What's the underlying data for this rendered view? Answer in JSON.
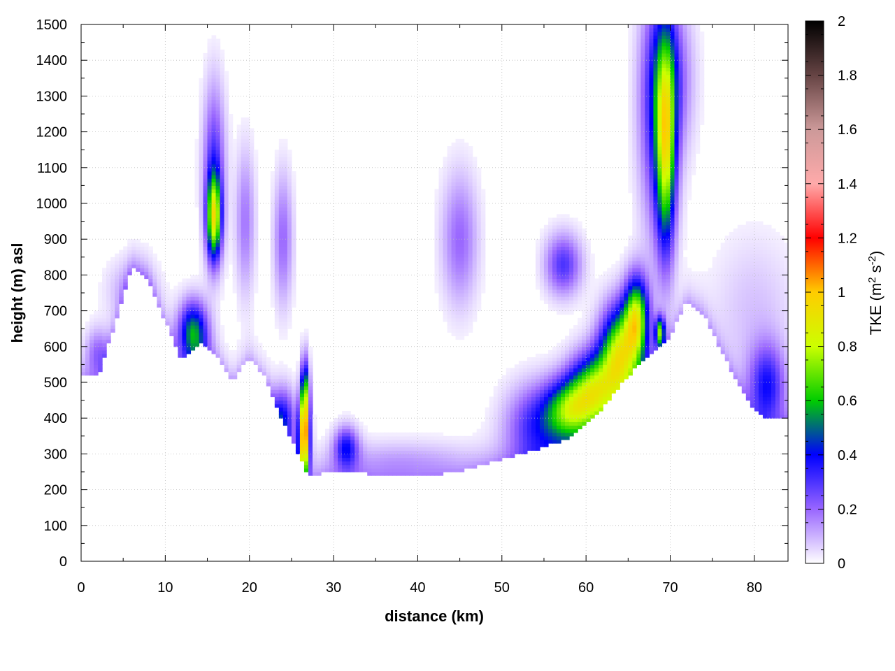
{
  "chart_data": {
    "type": "heatmap",
    "title": "",
    "xlabel": "distance (km)",
    "ylabel": "height (m) asl",
    "xlim": [
      0,
      84
    ],
    "ylim": [
      0,
      1500
    ],
    "x_ticks": [
      0,
      10,
      20,
      30,
      40,
      50,
      60,
      70,
      80
    ],
    "y_ticks": [
      0,
      100,
      200,
      300,
      400,
      500,
      600,
      700,
      800,
      900,
      1000,
      1100,
      1200,
      1300,
      1400,
      1500
    ],
    "grid": true,
    "colorbar": {
      "label_main": "TKE (m",
      "label_sup1": "2",
      "label_mid": " s",
      "label_sup2": "-2",
      "label_end": ")",
      "range": [
        0,
        2
      ],
      "ticks": [
        0,
        0.2,
        0.4,
        0.6,
        0.8,
        1,
        1.2,
        1.4,
        1.6,
        1.8,
        2
      ],
      "colorstops": [
        [
          0.0,
          "#ffffff"
        ],
        [
          0.2,
          "#9966ff"
        ],
        [
          0.4,
          "#0000ff"
        ],
        [
          0.6,
          "#00cc00"
        ],
        [
          0.8,
          "#ccff00"
        ],
        [
          1.0,
          "#ffcc00"
        ],
        [
          1.2,
          "#ff0000"
        ],
        [
          1.4,
          "#ffaaaa"
        ],
        [
          1.6,
          "#cc9999"
        ],
        [
          1.8,
          "#664444"
        ],
        [
          2.0,
          "#000000"
        ]
      ]
    },
    "terrain": [
      [
        0,
        520
      ],
      [
        2,
        515
      ],
      [
        4,
        660
      ],
      [
        6,
        820
      ],
      [
        8,
        790
      ],
      [
        10,
        670
      ],
      [
        12,
        560
      ],
      [
        14,
        610
      ],
      [
        16,
        580
      ],
      [
        18,
        505
      ],
      [
        20,
        570
      ],
      [
        22,
        510
      ],
      [
        24,
        390
      ],
      [
        26,
        290
      ],
      [
        27,
        235
      ],
      [
        29,
        250
      ],
      [
        32,
        255
      ],
      [
        35,
        240
      ],
      [
        40,
        238
      ],
      [
        45,
        250
      ],
      [
        50,
        285
      ],
      [
        55,
        320
      ],
      [
        58,
        345
      ],
      [
        60,
        380
      ],
      [
        62,
        430
      ],
      [
        64,
        490
      ],
      [
        66,
        545
      ],
      [
        68,
        585
      ],
      [
        70,
        630
      ],
      [
        72,
        730
      ],
      [
        74,
        690
      ],
      [
        76,
        590
      ],
      [
        78,
        500
      ],
      [
        80,
        420
      ],
      [
        82,
        395
      ],
      [
        84,
        405
      ]
    ],
    "tke_features": [
      {
        "x": 15.8,
        "z": 960,
        "sx": 0.6,
        "sz": 80,
        "peak": 0.75
      },
      {
        "x": 15.8,
        "z": 1100,
        "sx": 0.9,
        "sz": 160,
        "peak": 0.3
      },
      {
        "x": 13.3,
        "z": 640,
        "sx": 1.2,
        "sz": 60,
        "peak": 0.55
      },
      {
        "x": 2.0,
        "z": 580,
        "sx": 1.0,
        "sz": 50,
        "peak": 0.2
      },
      {
        "x": 19.5,
        "z": 950,
        "sx": 0.8,
        "sz": 140,
        "peak": 0.18
      },
      {
        "x": 24.0,
        "z": 900,
        "sx": 0.8,
        "sz": 130,
        "peak": 0.2
      },
      {
        "x": 24.0,
        "z": 400,
        "sx": 1.0,
        "sz": 60,
        "peak": 0.35
      },
      {
        "x": 26.5,
        "z": 340,
        "sx": 0.45,
        "sz": 80,
        "peak": 1.05
      },
      {
        "x": 26.6,
        "z": 470,
        "sx": 0.35,
        "sz": 70,
        "peak": 0.55
      },
      {
        "x": 31.5,
        "z": 320,
        "sx": 1.0,
        "sz": 40,
        "peak": 0.35
      },
      {
        "x": 45.0,
        "z": 900,
        "sx": 1.5,
        "sz": 130,
        "peak": 0.2
      },
      {
        "x": 57.3,
        "z": 830,
        "sx": 1.5,
        "sz": 60,
        "peak": 0.3
      },
      {
        "x": 58.0,
        "z": 420,
        "sx": 2.0,
        "sz": 60,
        "peak": 0.6
      },
      {
        "x": 61.0,
        "z": 480,
        "sx": 2.0,
        "sz": 70,
        "peak": 0.7
      },
      {
        "x": 64.0,
        "z": 580,
        "sx": 1.6,
        "sz": 90,
        "peak": 0.8
      },
      {
        "x": 66.0,
        "z": 680,
        "sx": 1.0,
        "sz": 80,
        "peak": 0.75
      },
      {
        "x": 54.0,
        "z": 380,
        "sx": 2.5,
        "sz": 80,
        "peak": 0.3
      },
      {
        "x": 69.5,
        "z": 1150,
        "sx": 0.8,
        "sz": 200,
        "peak": 0.65
      },
      {
        "x": 68.5,
        "z": 1250,
        "sx": 1.5,
        "sz": 250,
        "peak": 0.3
      },
      {
        "x": 70.0,
        "z": 1350,
        "sx": 1.8,
        "sz": 150,
        "peak": 0.25
      },
      {
        "x": 68.8,
        "z": 640,
        "sx": 0.4,
        "sz": 30,
        "peak": 0.65
      },
      {
        "x": 81.5,
        "z": 490,
        "sx": 1.5,
        "sz": 80,
        "peak": 0.35
      },
      {
        "x": 80.0,
        "z": 700,
        "sx": 3.5,
        "sz": 150,
        "peak": 0.08
      },
      {
        "x": 38.0,
        "z": 280,
        "sx": 6.0,
        "sz": 40,
        "peak": 0.1
      },
      {
        "x": 6.0,
        "z": 760,
        "sx": 2.0,
        "sz": 60,
        "peak": 0.12
      }
    ]
  }
}
